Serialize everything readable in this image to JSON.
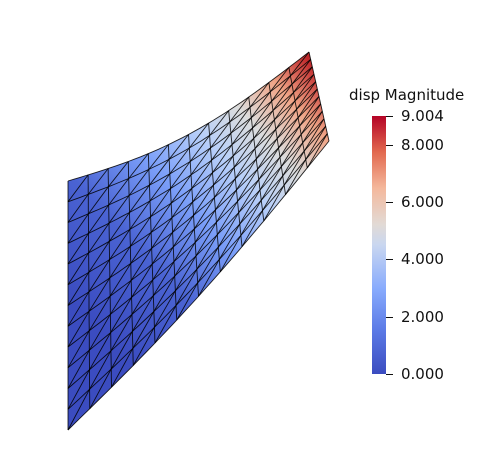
{
  "colorbar": {
    "title": "disp Magnitude",
    "ticks": [
      {
        "label": "9.004",
        "value": 9.004
      },
      {
        "label": "8.000",
        "value": 8.0
      },
      {
        "label": "6.000",
        "value": 6.0
      },
      {
        "label": "4.000",
        "value": 4.0
      },
      {
        "label": "2.000",
        "value": 2.0
      },
      {
        "label": "0.000",
        "value": 0.0
      }
    ],
    "range": [
      0.0,
      9.004
    ],
    "colormap": [
      "#3b4cc0",
      "#6f92f3",
      "#aac7fd",
      "#dddcdc",
      "#f6b89c",
      "#e7745b",
      "#b40426"
    ]
  },
  "mesh": {
    "edge_color": "#000000",
    "rows": 12,
    "cols": 12
  }
}
